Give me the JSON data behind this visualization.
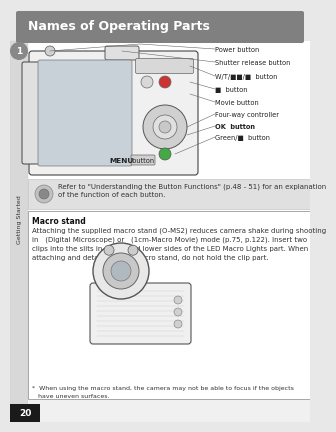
{
  "title": "Names of Operating Parts",
  "title_bg_color": "#808080",
  "title_text_color": "#ffffff",
  "title_fontsize": 9,
  "page_bg_color": "#e8e8e8",
  "content_bg_color": "#ffffff",
  "page_number": "20",
  "page_number_bg": "#1a1a1a",
  "page_number_color": "#ffffff",
  "tab_bg_color": "#d8d8d8",
  "tab_text": "Getting Started",
  "tab_number": "1",
  "tab_number_bg": "#888888",
  "note_text": "Refer to \"Understanding the Button Functions\" (p.48 - 51) for an explanation\nof the function of each button.",
  "note_bg": "#e0e0e0",
  "macro_title": "Macro stand",
  "macro_body_line1": "Attaching the supplied macro stand (O-MS2) reduces camera shake during shooting",
  "macro_body_line2": "in   (Digital Microscope) or   (1cm-Macro Movie) mode (p.75, p.122). Insert two",
  "macro_body_line3": "clips into the slits in upper and lower sides of the LED Macro Lights part. When",
  "macro_body_line4": "attaching and detaching the macro stand, do not hold the clip part.",
  "macro_footer_line1": "*  When using the macro stand, the camera may not be able to focus if the objects",
  "macro_footer_line2": "   have uneven surfaces.",
  "macro_box_color": "#ffffff",
  "macro_box_border": "#999999",
  "small_font": 5.0,
  "label_font": 4.8,
  "body_font": 5.0
}
